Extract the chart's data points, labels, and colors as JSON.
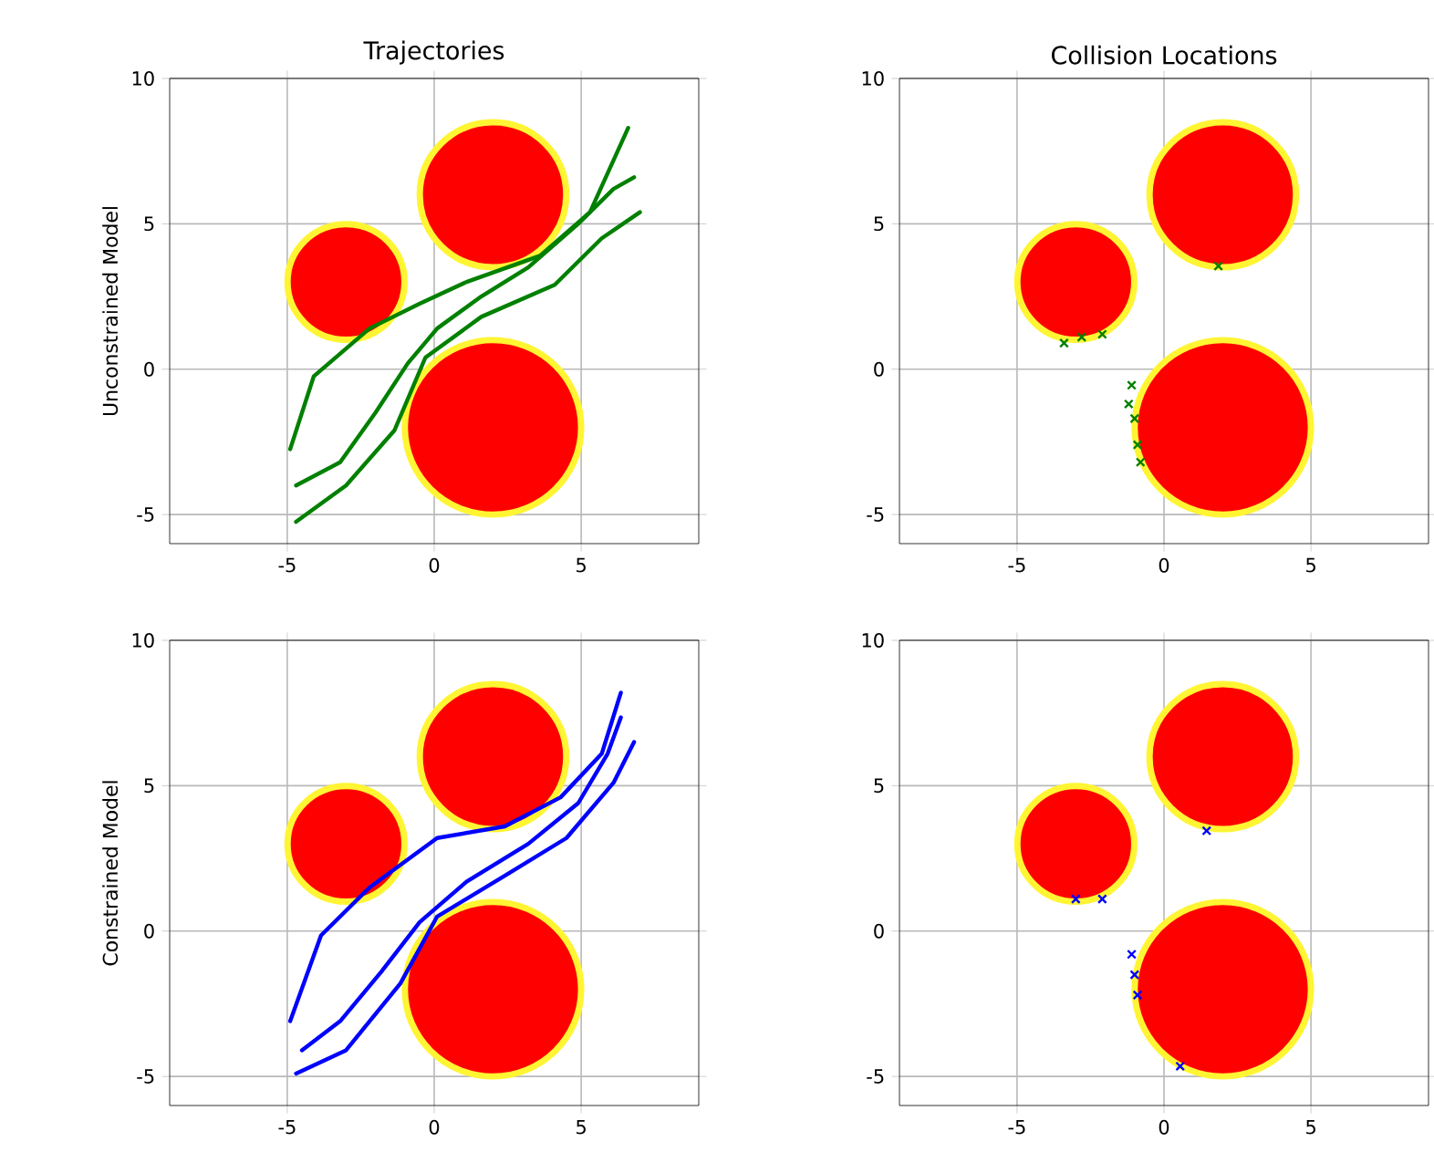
{
  "chart_data": [
    {
      "type": "line",
      "title": "Trajectories",
      "ylabel": "Unconstrained Model",
      "xlim": [
        -9,
        9
      ],
      "ylim": [
        -6,
        10
      ],
      "xticks": [
        -5,
        0,
        5
      ],
      "yticks": [
        -5,
        0,
        5,
        10
      ],
      "grid": true,
      "series": [
        {
          "type": "bubble",
          "color": "#ff0000",
          "x": [
            -3,
            2,
            2
          ],
          "values": [
            3,
            6,
            -2
          ],
          "sizes": [
            0.44,
            0.69,
            1
          ]
        },
        {
          "color": "#008000",
          "x": [
            -4.7,
            -3.2,
            -2,
            -0.9,
            0.1,
            1.6,
            3.2,
            4.9,
            6.1,
            6.8
          ],
          "values": [
            -4.0,
            -3.2,
            -1.5,
            0.2,
            1.4,
            2.5,
            3.5,
            5.0,
            6.2,
            6.6
          ]
        },
        {
          "color": "#008000",
          "x": [
            -4.9,
            -4.1,
            -2.2,
            -0.5,
            1.1,
            3.6,
            5.3,
            6.6
          ],
          "values": [
            -2.75,
            -0.25,
            1.4,
            2.25,
            3.0,
            3.9,
            5.4,
            8.3
          ]
        },
        {
          "color": "#008000",
          "x": [
            -4.7,
            -3,
            -1.35,
            -0.3,
            1.6,
            4.1,
            5.7,
            7
          ],
          "values": [
            -5.25,
            -4.0,
            -2.1,
            0.4,
            1.8,
            2.9,
            4.5,
            5.4
          ]
        }
      ]
    },
    {
      "type": "scatter",
      "title": "Collision Locations",
      "marker": "cross",
      "xlim": [
        -9,
        9
      ],
      "ylim": [
        -6,
        10
      ],
      "xticks": [
        -5,
        0,
        5
      ],
      "yticks": [
        -5,
        0,
        5,
        10
      ],
      "grid": true,
      "series": [
        {
          "type": "bubble",
          "color": "#ff0000",
          "x": [
            -3,
            2,
            2
          ],
          "values": [
            3,
            6,
            -2
          ],
          "sizes": [
            0.44,
            0.69,
            1
          ]
        },
        {
          "color": "#008000",
          "x": [
            -2.8,
            -3.4,
            -2.1,
            -1.1,
            -1,
            -0.9,
            -1.2,
            -0.8,
            1.85
          ],
          "values": [
            1.1,
            0.9,
            1.2,
            -0.55,
            -1.7,
            -2.6,
            -1.2,
            -3.2,
            3.55
          ]
        }
      ]
    },
    {
      "type": "line",
      "ylabel": "Constrained Model",
      "xlim": [
        -9,
        9
      ],
      "ylim": [
        -6,
        10
      ],
      "xticks": [
        -5,
        0,
        5
      ],
      "yticks": [
        -5,
        0,
        5,
        10
      ],
      "grid": true,
      "series": [
        {
          "type": "bubble",
          "color": "#ff0000",
          "x": [
            -3,
            2,
            2
          ],
          "values": [
            3,
            6,
            -2
          ],
          "sizes": [
            0.44,
            0.69,
            1
          ]
        },
        {
          "color": "#0000ff",
          "x": [
            -4.5,
            -3.2,
            -1.8,
            -0.5,
            1.1,
            3.2,
            4.9,
            5.9,
            6.35
          ],
          "values": [
            -4.1,
            -3.1,
            -1.4,
            0.3,
            1.7,
            3.0,
            4.4,
            6.1,
            7.35
          ]
        },
        {
          "color": "#0000ff",
          "x": [
            -4.9,
            -3.85,
            -2.2,
            0.1,
            2.4,
            4.3,
            5.7,
            6.35
          ],
          "values": [
            -3.1,
            -0.15,
            1.5,
            3.2,
            3.6,
            4.6,
            6.1,
            8.2
          ]
        },
        {
          "color": "#0000ff",
          "x": [
            -4.7,
            -3,
            -1.15,
            0.1,
            2.4,
            4.5,
            6.1,
            6.8
          ],
          "values": [
            -4.9,
            -4.1,
            -1.8,
            0.5,
            1.9,
            3.2,
            5.1,
            6.5
          ]
        }
      ]
    },
    {
      "type": "scatter",
      "marker": "cross",
      "xlim": [
        -9,
        9
      ],
      "ylim": [
        -6,
        10
      ],
      "xticks": [
        -5,
        0,
        5
      ],
      "yticks": [
        -5,
        0,
        5,
        10
      ],
      "grid": true,
      "series": [
        {
          "type": "bubble",
          "color": "#ff0000",
          "x": [
            -3,
            2,
            2
          ],
          "values": [
            3,
            6,
            -2
          ],
          "sizes": [
            0.44,
            0.69,
            1
          ]
        },
        {
          "color": "#0000ff",
          "x": [
            -1,
            -1.1,
            -0.9,
            -3,
            -2.1,
            1.45,
            0.55
          ],
          "values": [
            -1.5,
            -0.8,
            -2.2,
            1.1,
            1.1,
            3.45,
            -4.65
          ]
        }
      ]
    }
  ]
}
